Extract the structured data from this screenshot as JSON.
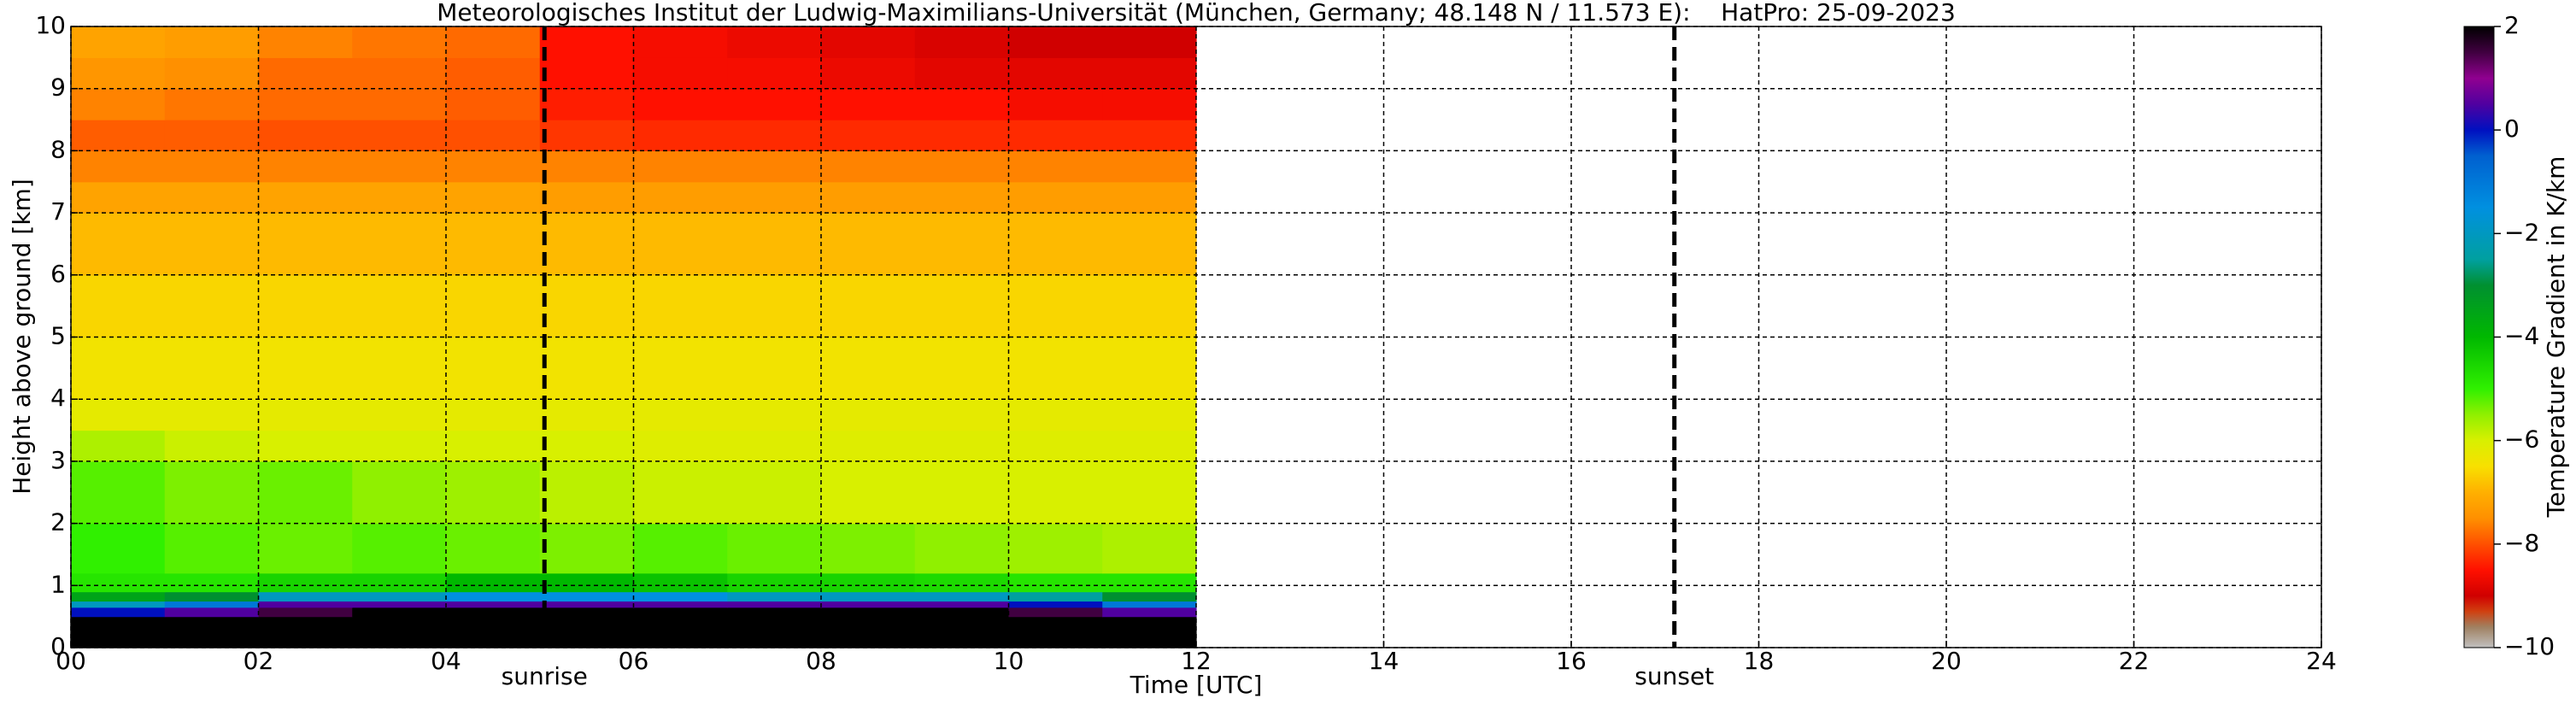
{
  "chart_data": {
    "type": "heatmap",
    "title": "Meteorologisches Institut der Ludwig-Maximilians-Universität (München, Germany; 48.148 N / 11.573 E):    HatPro: 25-09-2023",
    "xlabel": "Time [UTC]",
    "ylabel": "Height above ground [km]",
    "colorbar_label": "Temperature Gradient in K/km",
    "xlim": [
      0,
      24
    ],
    "ylim": [
      0,
      10
    ],
    "xticks": [
      {
        "value": 0,
        "label": "00"
      },
      {
        "value": 2,
        "label": "02"
      },
      {
        "value": 4,
        "label": "04"
      },
      {
        "value": 6,
        "label": "06"
      },
      {
        "value": 8,
        "label": "08"
      },
      {
        "value": 10,
        "label": "10"
      },
      12,
      14,
      16,
      18,
      20,
      22,
      24
    ],
    "yticks": [
      0,
      1,
      2,
      3,
      4,
      5,
      6,
      7,
      8,
      9,
      10
    ],
    "grid": true,
    "zlim": [
      -10,
      2
    ],
    "zticks": [
      {
        "value": -10,
        "label": "−10"
      },
      {
        "value": -8,
        "label": "−8"
      },
      {
        "value": -6,
        "label": "−6"
      },
      {
        "value": -4,
        "label": "−4"
      },
      {
        "value": -2,
        "label": "−2"
      },
      0,
      2
    ],
    "colorscale": [
      [
        -10,
        "#c0c0c0"
      ],
      [
        -9.6,
        "#a08060"
      ],
      [
        -9.3,
        "#d04010"
      ],
      [
        -9,
        "#d00000"
      ],
      [
        -8.5,
        "#ff1000"
      ],
      [
        -8,
        "#ff5000"
      ],
      [
        -7.5,
        "#ff9000"
      ],
      [
        -7,
        "#ffb000"
      ],
      [
        -6.5,
        "#f8e000"
      ],
      [
        -6,
        "#d8f000"
      ],
      [
        -5.5,
        "#90f000"
      ],
      [
        -5,
        "#30f000"
      ],
      [
        -4,
        "#00b800"
      ],
      [
        -3,
        "#009030"
      ],
      [
        -2.5,
        "#00a0a0"
      ],
      [
        -1.5,
        "#0090e0"
      ],
      [
        -0.5,
        "#0060d0"
      ],
      [
        0,
        "#0010c0"
      ],
      [
        0.5,
        "#5000a0"
      ],
      [
        1,
        "#900090"
      ],
      [
        1.5,
        "#400040"
      ],
      [
        2,
        "#000000"
      ]
    ],
    "x_edges": [
      0,
      1,
      2,
      3,
      4,
      5,
      6,
      7,
      8,
      9,
      10,
      11,
      12
    ],
    "y_edges": [
      0,
      0.5,
      0.65,
      0.75,
      0.9,
      1.2,
      2,
      3,
      3.5,
      4,
      5,
      6,
      7,
      7.5,
      8,
      8.5,
      9,
      9.5,
      10
    ],
    "z": [
      [
        2,
        2,
        2,
        2,
        2,
        2,
        2,
        2,
        2,
        2,
        2,
        2
      ],
      [
        0,
        0.5,
        1.5,
        2,
        2,
        2,
        2,
        2,
        2,
        2,
        1.5,
        0.5
      ],
      [
        -2,
        -1,
        0.5,
        0.5,
        0.5,
        0.5,
        0.5,
        0.5,
        0.5,
        0.5,
        0,
        -1
      ],
      [
        -3.5,
        -3,
        -2,
        -2,
        -1.5,
        -1.5,
        -1.5,
        -2,
        -2,
        -2,
        -2.5,
        -3
      ],
      [
        -4.8,
        -4.8,
        -4.5,
        -4.5,
        -4,
        -4,
        -4.2,
        -4.5,
        -4.5,
        -4.6,
        -4.8,
        -4.8
      ],
      [
        -5,
        -5.2,
        -5.3,
        -5.2,
        -5.3,
        -5.4,
        -5.2,
        -5.3,
        -5.4,
        -5.5,
        -5.6,
        -5.7
      ],
      [
        -5.2,
        -5.4,
        -5.3,
        -5.5,
        -5.6,
        -5.8,
        -5.9,
        -5.9,
        -6,
        -6,
        -6,
        -6
      ],
      [
        -5.7,
        -5.9,
        -6,
        -6,
        -6,
        -6,
        -6.1,
        -6.1,
        -6.1,
        -6.1,
        -6.1,
        -6.1
      ],
      [
        -6.2,
        -6.2,
        -6.2,
        -6.2,
        -6.2,
        -6.2,
        -6.2,
        -6.2,
        -6.2,
        -6.2,
        -6.2,
        -6.2
      ],
      [
        -6.4,
        -6.4,
        -6.4,
        -6.4,
        -6.4,
        -6.4,
        -6.4,
        -6.4,
        -6.4,
        -6.4,
        -6.4,
        -6.4
      ],
      [
        -6.6,
        -6.6,
        -6.6,
        -6.6,
        -6.6,
        -6.6,
        -6.6,
        -6.6,
        -6.6,
        -6.6,
        -6.6,
        -6.6
      ],
      [
        -6.9,
        -6.9,
        -6.9,
        -6.9,
        -6.9,
        -6.9,
        -6.9,
        -6.9,
        -6.9,
        -6.9,
        -6.9,
        -6.9
      ],
      [
        -7.2,
        -7.2,
        -7.2,
        -7.2,
        -7.2,
        -7.3,
        -7.3,
        -7.3,
        -7.3,
        -7.3,
        -7.3,
        -7.3
      ],
      [
        -7.6,
        -7.6,
        -7.6,
        -7.6,
        -7.6,
        -7.6,
        -7.6,
        -7.6,
        -7.6,
        -7.6,
        -7.6,
        -7.6
      ],
      [
        -7.9,
        -7.9,
        -8,
        -8,
        -8,
        -8.2,
        -8.3,
        -8.3,
        -8.3,
        -8.3,
        -8.3,
        -8.3
      ],
      [
        -7.6,
        -7.7,
        -7.8,
        -7.8,
        -7.9,
        -8.4,
        -8.5,
        -8.5,
        -8.5,
        -8.5,
        -8.6,
        -8.6
      ],
      [
        -7.4,
        -7.5,
        -7.8,
        -7.8,
        -7.9,
        -8.5,
        -8.6,
        -8.6,
        -8.7,
        -8.8,
        -8.8,
        -8.8
      ],
      [
        -7.2,
        -7.3,
        -7.6,
        -7.7,
        -7.8,
        -8.5,
        -8.6,
        -8.7,
        -8.8,
        -8.9,
        -9,
        -9
      ]
    ],
    "vlines": [
      {
        "x": 5.05,
        "label": "sunrise"
      },
      {
        "x": 17.1,
        "label": "sunset"
      }
    ]
  }
}
